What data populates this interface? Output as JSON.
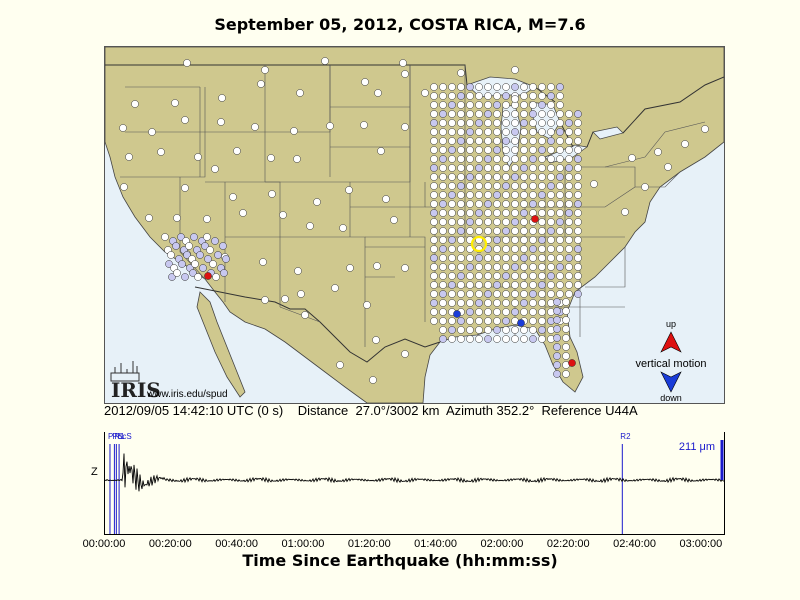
{
  "title": "September 05, 2012, COSTA RICA, M=7.6",
  "map": {
    "logo_text": "IRIS",
    "url_text": "www.iris.edu/spud",
    "legend": {
      "up_label": "up",
      "motion_label": "vertical motion",
      "down_label": "down"
    },
    "colors": {
      "land": "#cfc88e",
      "water": "#e7f1f8",
      "station_light": "#ffffff",
      "station_lav": "#c8c8f0",
      "station_red": "#dd1111",
      "station_blue": "#1a3cd8",
      "reference_ring": "#ffee00"
    }
  },
  "info": {
    "datetime": "2012/09/05 14:42:10 UTC (0 s)",
    "distance": "Distance  27.0°/3002 km",
    "azimuth": "Azimuth 352.2°",
    "reference": "Reference U44A"
  },
  "trace": {
    "channel_label": "Z",
    "amplitude_label": "211 μm",
    "phase_colors": "#1a1acc",
    "phases": [
      {
        "label": "P",
        "t_sec": 90
      },
      {
        "label": "Pc",
        "t_sec": 170
      },
      {
        "label": "R1",
        "t_sec": 205
      },
      {
        "label": "ScS",
        "t_sec": 255
      },
      {
        "label": "R2",
        "t_sec": 9360
      }
    ]
  },
  "chart_data": {
    "type": "line",
    "xlabel": "Time Since Earthquake (hh:mm:ss)",
    "x_range_sec": [
      0,
      11200
    ],
    "x_ticks": [
      "00:00:00",
      "00:20:00",
      "00:40:00",
      "01:00:00",
      "01:20:00",
      "01:40:00",
      "02:00:00",
      "02:20:00",
      "02:40:00",
      "03:00:00"
    ],
    "x_tick_values_sec": [
      0,
      1200,
      2400,
      3600,
      4800,
      6000,
      7200,
      8400,
      9600,
      10800
    ]
  }
}
